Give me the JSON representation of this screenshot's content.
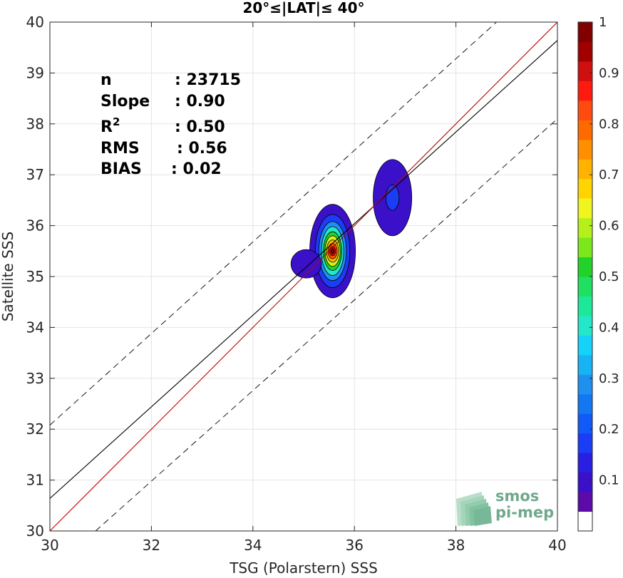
{
  "chart_data": {
    "type": "scatter",
    "title": "20°≤|LAT|≤ 40°",
    "xlabel": "TSG (Polarstern) SSS",
    "ylabel": "Satellite SSS",
    "xlim": [
      30,
      40
    ],
    "ylim": [
      30,
      40
    ],
    "xticks": [
      "30",
      "32",
      "34",
      "36",
      "38",
      "40"
    ],
    "yticks": [
      "30",
      "31",
      "32",
      "33",
      "34",
      "35",
      "36",
      "37",
      "38",
      "39",
      "40"
    ],
    "grid": true,
    "stats": [
      {
        "label": "n",
        "value": ": 23715"
      },
      {
        "label": "Slope",
        "value": ": 0.90"
      },
      {
        "label": "R",
        "sup": "2",
        "value": ": 0.50"
      },
      {
        "label": "RMS",
        "value": ": 0.56"
      },
      {
        "label": "BIAS",
        "value": ": 0.02"
      }
    ],
    "lines": {
      "one_to_one": {
        "color": "#c00000",
        "x": [
          30,
          40
        ],
        "y": [
          30,
          40
        ]
      },
      "regression": {
        "color": "#000000",
        "x": [
          30,
          40
        ],
        "y": [
          30.64,
          39.64
        ]
      },
      "upper_bound": {
        "color": "#000000",
        "style": "dashed",
        "x": [
          30,
          40
        ],
        "y": [
          32.08,
          41.08
        ]
      },
      "lower_bound": {
        "color": "#000000",
        "style": "dashed",
        "x": [
          30.9,
          40
        ],
        "y": [
          30,
          38.1
        ]
      }
    },
    "density_contours": [
      {
        "center": [
          35.57,
          35.5
        ],
        "levels": [
          {
            "level": 0.1,
            "color": "#3a10c8",
            "rx": 0.45,
            "ry": 0.92
          },
          {
            "level": 0.2,
            "color": "#1b3df5",
            "rx": 0.34,
            "ry": 0.72
          },
          {
            "level": 0.3,
            "color": "#1f90f0",
            "rx": 0.27,
            "ry": 0.58
          },
          {
            "level": 0.4,
            "color": "#24e6c8",
            "rx": 0.22,
            "ry": 0.48
          },
          {
            "level": 0.5,
            "color": "#22d22a",
            "rx": 0.18,
            "ry": 0.38
          },
          {
            "level": 0.6,
            "color": "#d8f01c",
            "rx": 0.15,
            "ry": 0.3
          },
          {
            "level": 0.7,
            "color": "#ffb200",
            "rx": 0.12,
            "ry": 0.22
          },
          {
            "level": 0.8,
            "color": "#ff5000",
            "rx": 0.09,
            "ry": 0.15
          },
          {
            "level": 0.9,
            "color": "#d01010",
            "rx": 0.06,
            "ry": 0.09
          },
          {
            "level": 1.0,
            "color": "#8a0000",
            "rx": 0.03,
            "ry": 0.05
          }
        ]
      },
      {
        "center": [
          35.05,
          35.25
        ],
        "levels": [
          {
            "level": 0.1,
            "color": "#3a10c8",
            "rx": 0.3,
            "ry": 0.28
          }
        ]
      },
      {
        "center": [
          36.75,
          36.55
        ],
        "levels": [
          {
            "level": 0.1,
            "color": "#3a10c8",
            "rx": 0.38,
            "ry": 0.75
          },
          {
            "level": 0.2,
            "color": "#1b3df5",
            "rx": 0.13,
            "ry": 0.25
          }
        ]
      }
    ],
    "colorbar": {
      "min": 0,
      "max": 1,
      "ticks": [
        "0.1",
        "0.2",
        "0.3",
        "0.4",
        "0.5",
        "0.6",
        "0.7",
        "0.8",
        "0.9",
        "1"
      ],
      "colors": [
        "#ffffff",
        "#5c0ba8",
        "#3a10c8",
        "#2a1ee0",
        "#1b3df5",
        "#125af8",
        "#1477f2",
        "#1f90f0",
        "#17b3f3",
        "#16d2f8",
        "#24e6c8",
        "#1de89a",
        "#1fe060",
        "#22d22a",
        "#7ae81c",
        "#b6f01c",
        "#f0f520",
        "#ffd400",
        "#ffb200",
        "#ff8f00",
        "#ff6a00",
        "#ff4a10",
        "#ff1a10",
        "#d01010",
        "#a00000",
        "#800000"
      ]
    },
    "watermark": {
      "line1": "smos",
      "line2": "pi-mep"
    }
  }
}
